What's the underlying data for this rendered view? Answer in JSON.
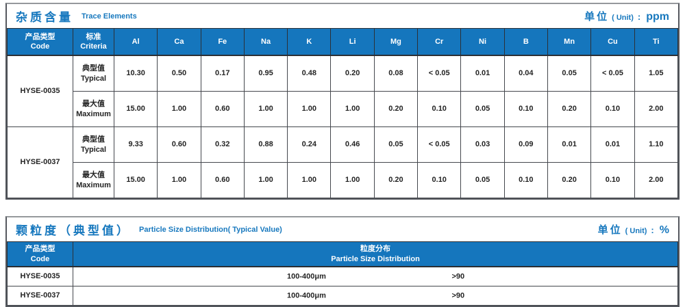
{
  "table1": {
    "title_zh": "杂质含量",
    "title_en": "Trace Elements",
    "unit": {
      "zh": "单位",
      "en": "( Unit)",
      "colon": ":",
      "value": "ppm"
    },
    "col1_header": {
      "zh": "产品类型",
      "en": "Code"
    },
    "col2_header": {
      "zh": "标准",
      "en": "Criteria"
    },
    "elements": [
      "Al",
      "Ca",
      "Fe",
      "Na",
      "K",
      "Li",
      "Mg",
      "Cr",
      "Ni",
      "B",
      "Mn",
      "Cu",
      "Ti"
    ],
    "products": [
      {
        "code": "HYSE-0035",
        "rows": [
          {
            "criteria_zh": "典型值",
            "criteria_en": "Typical",
            "values": [
              "10.30",
              "0.50",
              "0.17",
              "0.95",
              "0.48",
              "0.20",
              "0.08",
              "< 0.05",
              "0.01",
              "0.04",
              "0.05",
              "< 0.05",
              "1.05"
            ]
          },
          {
            "criteria_zh": "最大值",
            "criteria_en": "Maximum",
            "values": [
              "15.00",
              "1.00",
              "0.60",
              "1.00",
              "1.00",
              "1.00",
              "0.20",
              "0.10",
              "0.05",
              "0.10",
              "0.20",
              "0.10",
              "2.00"
            ]
          }
        ]
      },
      {
        "code": "HYSE-0037",
        "rows": [
          {
            "criteria_zh": "典型值",
            "criteria_en": "Typical",
            "values": [
              "9.33",
              "0.60",
              "0.32",
              "0.88",
              "0.24",
              "0.46",
              "0.05",
              "< 0.05",
              "0.03",
              "0.09",
              "0.01",
              "0.01",
              "1.10"
            ]
          },
          {
            "criteria_zh": "最大值",
            "criteria_en": "Maximum",
            "values": [
              "15.00",
              "1.00",
              "0.60",
              "1.00",
              "1.00",
              "1.00",
              "0.20",
              "0.10",
              "0.05",
              "0.10",
              "0.20",
              "0.10",
              "2.00"
            ]
          }
        ]
      }
    ]
  },
  "table2": {
    "title_zh": "颗粒度（典型值）",
    "title_en": "Particle Size Distribution( Typical Value)",
    "unit": {
      "zh": "单位",
      "en": "( Unit)",
      "colon": ":",
      "value": "%"
    },
    "col1_header": {
      "zh": "产品类型",
      "en": "Code"
    },
    "dist_header": {
      "zh": "粒度分布",
      "en": "Particle Size Distribution"
    },
    "rows": [
      {
        "code": "HYSE-0035",
        "range": "100-400μm",
        "percent": ">90"
      },
      {
        "code": "HYSE-0037",
        "range": "100-400μm",
        "percent": ">90"
      }
    ]
  }
}
